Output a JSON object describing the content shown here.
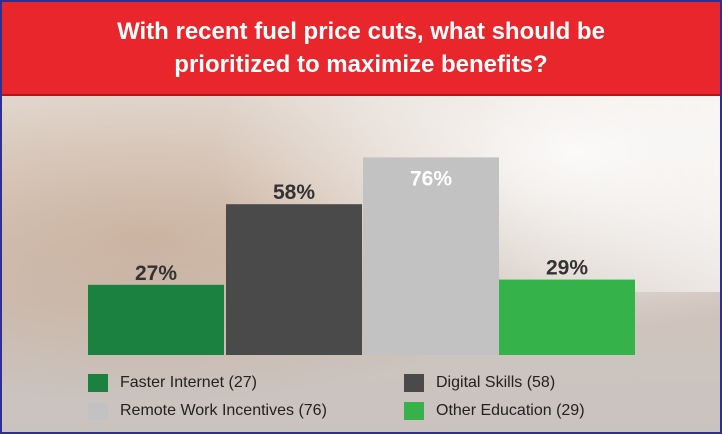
{
  "title": "With recent fuel price cuts, what should be prioritized to maximize benefits?",
  "chart_data": {
    "type": "bar",
    "categories": [
      "Faster Internet",
      "Digital Skills",
      "Remote Work Incentives",
      "Other Education"
    ],
    "values": [
      27,
      58,
      76,
      29
    ],
    "data_labels": [
      "27%",
      "58%",
      "76%",
      "29%"
    ],
    "colors": [
      "#1a8140",
      "#4a4a4a",
      "#c2c2c2",
      "#35b24a"
    ],
    "label_colors": [
      "#333333",
      "#333333",
      "#ffffff",
      "#333333"
    ],
    "ylim": [
      0,
      100
    ],
    "grid": false,
    "legend_placement": "bottom"
  },
  "legend": [
    {
      "label": "Faster Internet  (27)",
      "color": "#1a8140"
    },
    {
      "label": "Digital Skills (58)",
      "color": "#4a4a4a"
    },
    {
      "label": "Remote Work Incentives  (76)",
      "color": "#c2c2c2"
    },
    {
      "label": "Other Education  (29)",
      "color": "#35b24a"
    }
  ]
}
